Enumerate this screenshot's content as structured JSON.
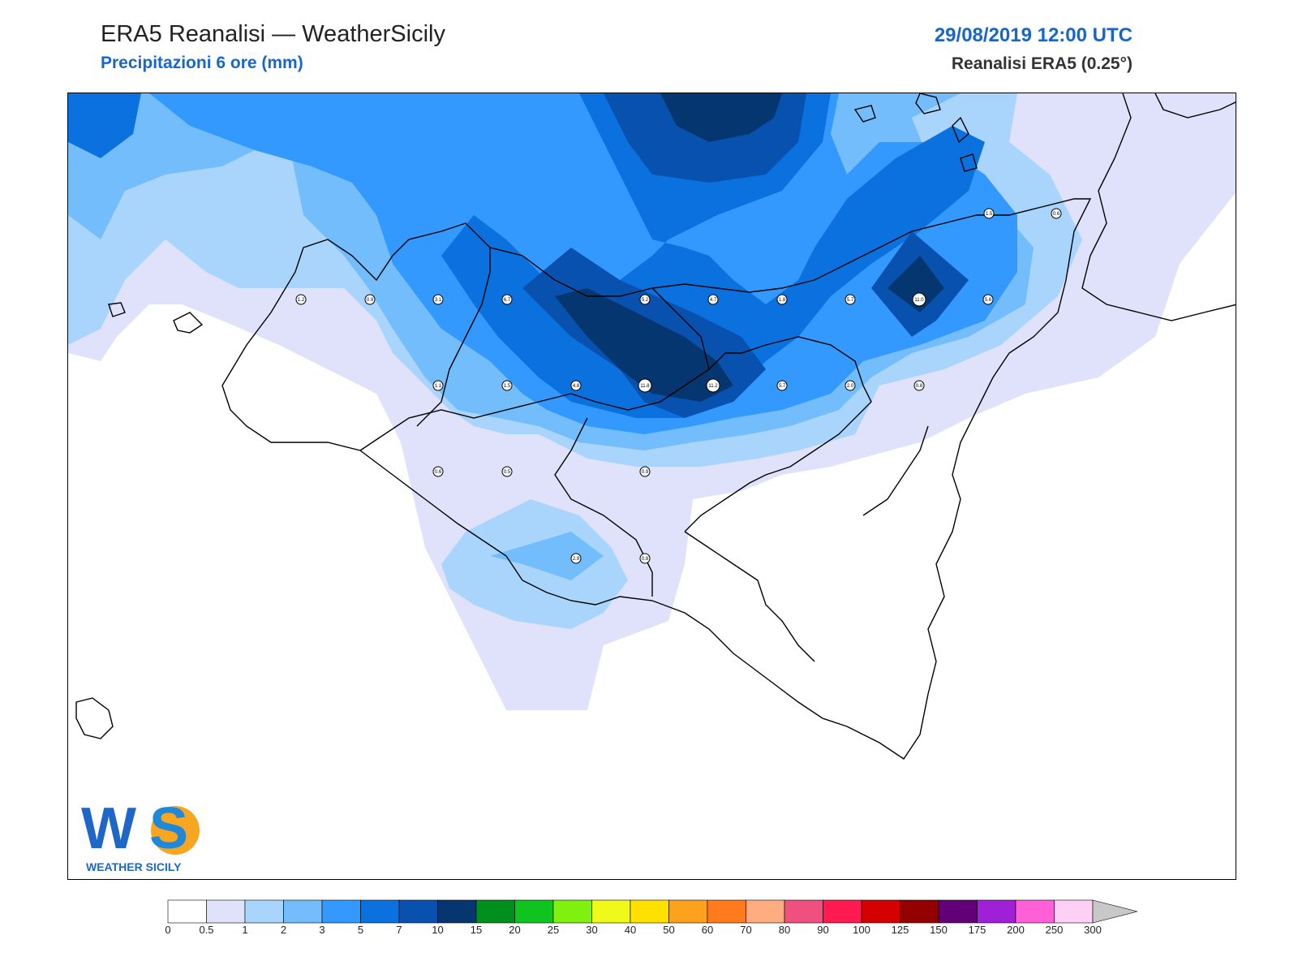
{
  "header": {
    "title": "ERA5 Reanalisi — WeatherSicily",
    "subtitle": "Precipitazioni 6 ore (mm)",
    "datetime": "29/08/2019 12:00 UTC",
    "source": "Reanalisi ERA5 (0.25°)"
  },
  "logo": {
    "big_text": "WS",
    "name": "WEATHER SICILY"
  },
  "legend": {
    "levels": [
      "0",
      "0.5",
      "1",
      "2",
      "3",
      "5",
      "7",
      "10",
      "15",
      "20",
      "25",
      "30",
      "40",
      "50",
      "60",
      "70",
      "80",
      "90",
      "100",
      "125",
      "150",
      "175",
      "200",
      "250",
      "300"
    ],
    "colors": [
      "#ffffff",
      "#e0e2fb",
      "#a9d5fd",
      "#74bdfd",
      "#3399fe",
      "#0b71df",
      "#0851ae",
      "#063670",
      "#008e1c",
      "#10c41f",
      "#80f10e",
      "#eff91a",
      "#ffe100",
      "#ffa01e",
      "#ff7b1e",
      "#ffad80",
      "#f05080",
      "#ff1a50",
      "#d50000",
      "#920000",
      "#620078",
      "#a020d8",
      "#ff60d8",
      "#ffd0f5"
    ],
    "arrow_color": "#c8c8c8"
  },
  "stations": [
    {
      "id": "p1",
      "label": "1.5"
    },
    {
      "id": "p2",
      "label": "0.6"
    },
    {
      "id": "p3",
      "label": "1.2"
    },
    {
      "id": "p4",
      "label": "0.9"
    },
    {
      "id": "p5",
      "label": "3.1"
    },
    {
      "id": "p6",
      "label": "6.7"
    },
    {
      "id": "p7",
      "label": "5.2"
    },
    {
      "id": "p8",
      "label": "4.7"
    },
    {
      "id": "p9",
      "label": "1.8"
    },
    {
      "id": "p10",
      "label": "5.7"
    },
    {
      "id": "p11",
      "label": "11.0"
    },
    {
      "id": "p12",
      "label": "5.6"
    },
    {
      "id": "p13",
      "label": "1.1"
    },
    {
      "id": "p14",
      "label": "1.5"
    },
    {
      "id": "p15",
      "label": "4.8"
    },
    {
      "id": "p16",
      "label": "11.8"
    },
    {
      "id": "p17",
      "label": "11.2"
    },
    {
      "id": "p18",
      "label": "5.7"
    },
    {
      "id": "p19",
      "label": "2.0"
    },
    {
      "id": "p20",
      "label": "0.8"
    },
    {
      "id": "p21",
      "label": "0.6"
    },
    {
      "id": "p22",
      "label": "0.5"
    },
    {
      "id": "p23",
      "label": "0.9"
    },
    {
      "id": "p24",
      "label": "2.9"
    },
    {
      "id": "p25",
      "label": "0.8"
    }
  ]
}
